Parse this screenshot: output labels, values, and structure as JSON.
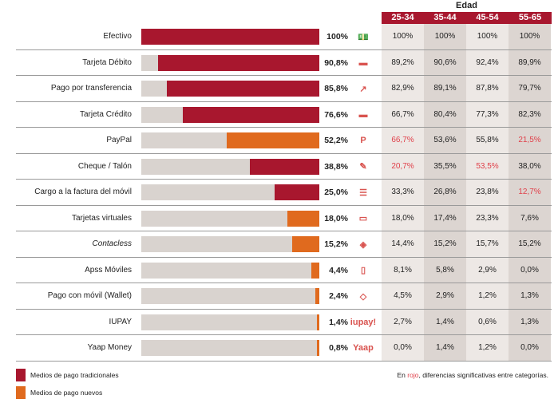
{
  "chart_data": {
    "type": "bar",
    "orientation": "horizontal",
    "group_label": "Edad",
    "age_groups": [
      "25-34",
      "35-44",
      "45-54",
      "55-65"
    ],
    "xlim": [
      0,
      100
    ],
    "colors": {
      "traditional": "#a8172e",
      "new": "#e06a1e",
      "significant": "#e0404a",
      "normal": "#222222"
    },
    "rows": [
      {
        "label": "Efectivo",
        "value": 100,
        "value_label": "100%",
        "type": "traditional",
        "icon": "banknotes-icon",
        "ages": [
          "100%",
          "100%",
          "100%",
          "100%"
        ],
        "red": [
          false,
          false,
          false,
          false
        ]
      },
      {
        "label": "Tarjeta Débito",
        "value": 90.8,
        "value_label": "90,8%",
        "type": "traditional",
        "icon": "card-icon",
        "ages": [
          "89,2%",
          "90,6%",
          "92,4%",
          "89,9%"
        ],
        "red": [
          false,
          false,
          false,
          false
        ]
      },
      {
        "label": "Pago por transferencia",
        "value": 85.8,
        "value_label": "85,8%",
        "type": "traditional",
        "icon": "share-arrow-icon",
        "ages": [
          "82,9%",
          "89,1%",
          "87,8%",
          "79,7%"
        ],
        "red": [
          false,
          false,
          false,
          false
        ]
      },
      {
        "label": "Tarjeta Crédito",
        "value": 76.6,
        "value_label": "76,6%",
        "type": "traditional",
        "icon": "card-icon",
        "ages": [
          "66,7%",
          "80,4%",
          "77,3%",
          "82,3%"
        ],
        "red": [
          false,
          false,
          false,
          false
        ]
      },
      {
        "label": "PayPal",
        "value": 52.2,
        "value_label": "52,2%",
        "type": "new",
        "icon": "paypal-icon",
        "ages": [
          "66,7%",
          "53,6%",
          "55,8%",
          "21,5%"
        ],
        "red": [
          true,
          false,
          false,
          true
        ]
      },
      {
        "label": "Cheque / Talón",
        "value": 38.8,
        "value_label": "38,8%",
        "type": "traditional",
        "icon": "cheque-icon",
        "ages": [
          "20,7%",
          "35,5%",
          "53,5%",
          "38,0%"
        ],
        "red": [
          true,
          false,
          true,
          false
        ]
      },
      {
        "label": "Cargo a la factura del móvil",
        "value": 25.0,
        "value_label": "25,0%",
        "type": "traditional",
        "icon": "invoice-icon",
        "ages": [
          "33,3%",
          "26,8%",
          "23,8%",
          "12,7%"
        ],
        "red": [
          false,
          false,
          false,
          true
        ]
      },
      {
        "label": "Tarjetas virtuales",
        "value": 18.0,
        "value_label": "18,0%",
        "type": "new",
        "icon": "virtual-card-icon",
        "ages": [
          "18,0%",
          "17,4%",
          "23,3%",
          "7,6%"
        ],
        "red": [
          false,
          false,
          false,
          false
        ]
      },
      {
        "label": "Contacless",
        "value": 15.2,
        "value_label": "15,2%",
        "type": "new",
        "icon": "contactless-icon",
        "ages": [
          "14,4%",
          "15,2%",
          "15,7%",
          "15,2%"
        ],
        "red": [
          false,
          false,
          false,
          false
        ]
      },
      {
        "label": "Apss Móviles",
        "value": 4.4,
        "value_label": "4,4%",
        "type": "new",
        "icon": "phone-tap-icon",
        "ages": [
          "8,1%",
          "5,8%",
          "2,9%",
          "0,0%"
        ],
        "red": [
          false,
          false,
          false,
          false
        ]
      },
      {
        "label": "Pago con móvil (Wallet)",
        "value": 2.4,
        "value_label": "2,4%",
        "type": "new",
        "icon": "phone-wallet-icon",
        "ages": [
          "4,5%",
          "2,9%",
          "1,2%",
          "1,3%"
        ],
        "red": [
          false,
          false,
          false,
          false
        ]
      },
      {
        "label": "IUPAY",
        "value": 1.4,
        "value_label": "1,4%",
        "type": "new",
        "icon": "iupay-logo-icon",
        "icon_text": "iupay!",
        "ages": [
          "2,7%",
          "1,4%",
          "0,6%",
          "1,3%"
        ],
        "red": [
          false,
          false,
          false,
          false
        ]
      },
      {
        "label": "Yaap Money",
        "value": 0.8,
        "value_label": "0,8%",
        "type": "new",
        "icon": "yaap-logo-icon",
        "icon_text": "Yaap",
        "ages": [
          "0,0%",
          "1,4%",
          "1,2%",
          "0,0%"
        ],
        "red": [
          false,
          false,
          false,
          false
        ]
      }
    ],
    "legend": [
      {
        "name": "Medios de pago tradicionales",
        "color": "#a8172e"
      },
      {
        "name": "Medios de pago nuevos",
        "color": "#e06a1e"
      }
    ],
    "note": {
      "pre": "En ",
      "highlight": "rojo",
      "post": ", diferencias significativas entre categorías."
    }
  }
}
